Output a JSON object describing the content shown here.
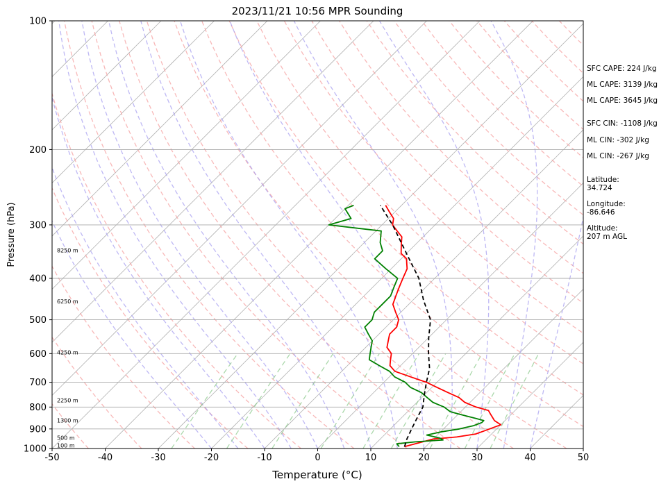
{
  "chart_data": {
    "type": "skew-t",
    "title": "2023/11/21 10:56 MPR Sounding",
    "xlabel": "Temperature (°C)",
    "ylabel": "Pressure (hPa)",
    "xlim": [
      -50,
      50
    ],
    "ylim": [
      1000,
      100
    ],
    "x_ticks": [
      -50,
      -40,
      -30,
      -20,
      -10,
      0,
      10,
      20,
      30,
      40,
      50
    ],
    "y_ticks": [
      100,
      200,
      300,
      400,
      500,
      600,
      700,
      800,
      900,
      1000
    ],
    "altitude_labels": [
      {
        "label": "100 m",
        "p": 995
      },
      {
        "label": "500 m",
        "p": 955
      },
      {
        "label": "1300 m",
        "p": 870
      },
      {
        "label": "2250 m",
        "p": 780
      },
      {
        "label": "4250 m",
        "p": 603
      },
      {
        "label": "6250 m",
        "p": 458
      },
      {
        "label": "8250 m",
        "p": 348
      }
    ],
    "series": [
      {
        "color": "#ff0000",
        "points": [
          [
            16,
            990
          ],
          [
            20,
            950
          ],
          [
            24,
            940
          ],
          [
            27,
            925
          ],
          [
            28,
            910
          ],
          [
            30,
            880
          ],
          [
            29,
            870
          ],
          [
            28,
            860
          ],
          [
            27,
            845
          ],
          [
            26,
            830
          ],
          [
            25,
            815
          ],
          [
            22,
            800
          ],
          [
            19,
            780
          ],
          [
            17,
            760
          ],
          [
            14,
            740
          ],
          [
            11,
            720
          ],
          [
            8,
            700
          ],
          [
            4,
            680
          ],
          [
            0,
            660
          ],
          [
            -2,
            640
          ],
          [
            -3,
            620
          ],
          [
            -4,
            600
          ],
          [
            -6,
            580
          ],
          [
            -7,
            560
          ],
          [
            -8,
            540
          ],
          [
            -8,
            520
          ],
          [
            -9,
            500
          ],
          [
            -11,
            480
          ],
          [
            -13,
            460
          ],
          [
            -14,
            440
          ],
          [
            -15,
            420
          ],
          [
            -16,
            400
          ],
          [
            -17,
            380
          ],
          [
            -18,
            370
          ],
          [
            -19,
            360
          ],
          [
            -21,
            350
          ],
          [
            -22,
            340
          ],
          [
            -23,
            330
          ],
          [
            -24,
            320
          ],
          [
            -26,
            310
          ],
          [
            -28,
            300
          ],
          [
            -29,
            290
          ],
          [
            -31,
            280
          ],
          [
            -33,
            270
          ]
        ]
      },
      {
        "color": "#008000",
        "points": [
          [
            15,
            990
          ],
          [
            14,
            975
          ],
          [
            17,
            965
          ],
          [
            22,
            955
          ],
          [
            21,
            945
          ],
          [
            18,
            930
          ],
          [
            20,
            915
          ],
          [
            23,
            900
          ],
          [
            25,
            885
          ],
          [
            26,
            870
          ],
          [
            26,
            860
          ],
          [
            24,
            850
          ],
          [
            22,
            840
          ],
          [
            20,
            830
          ],
          [
            18,
            820
          ],
          [
            16,
            800
          ],
          [
            13,
            780
          ],
          [
            11,
            760
          ],
          [
            9,
            740
          ],
          [
            6,
            720
          ],
          [
            4,
            700
          ],
          [
            1,
            680
          ],
          [
            -1,
            660
          ],
          [
            -4,
            640
          ],
          [
            -7,
            620
          ],
          [
            -8,
            600
          ],
          [
            -9,
            580
          ],
          [
            -10,
            560
          ],
          [
            -12,
            540
          ],
          [
            -14,
            520
          ],
          [
            -14,
            500
          ],
          [
            -15,
            480
          ],
          [
            -15,
            460
          ],
          [
            -15,
            440
          ],
          [
            -16,
            420
          ],
          [
            -17,
            400
          ],
          [
            -21,
            380
          ],
          [
            -25,
            360
          ],
          [
            -25,
            345
          ],
          [
            -27,
            330
          ],
          [
            -29,
            310
          ],
          [
            -40,
            300
          ],
          [
            -37,
            290
          ],
          [
            -40,
            275
          ],
          [
            -39,
            270
          ]
        ]
      },
      {
        "color": "#000000",
        "points": [
          [
            16,
            990
          ],
          [
            15,
            950
          ],
          [
            14,
            900
          ],
          [
            13,
            850
          ],
          [
            12,
            800
          ],
          [
            10,
            750
          ],
          [
            8,
            700
          ],
          [
            6,
            650
          ],
          [
            3,
            600
          ],
          [
            0,
            550
          ],
          [
            -3,
            500
          ],
          [
            -8,
            450
          ],
          [
            -13,
            400
          ],
          [
            -20,
            350
          ],
          [
            -28,
            300
          ],
          [
            -34,
            270
          ]
        ]
      }
    ],
    "annotations": [
      "SFC CAPE: 224 J/kg",
      "ML CAPE: 3139 J/kg",
      "ML CAPE: 3645 J/kg",
      "SFC CIN: -1108 J/kg",
      "ML CIN: -302 J/kg",
      "ML CIN: -267 J/kg",
      "Latitude:\n34.724",
      "Longitude:\n-86.646",
      "Altitude:\n207 m AGL"
    ],
    "grid": true
  }
}
